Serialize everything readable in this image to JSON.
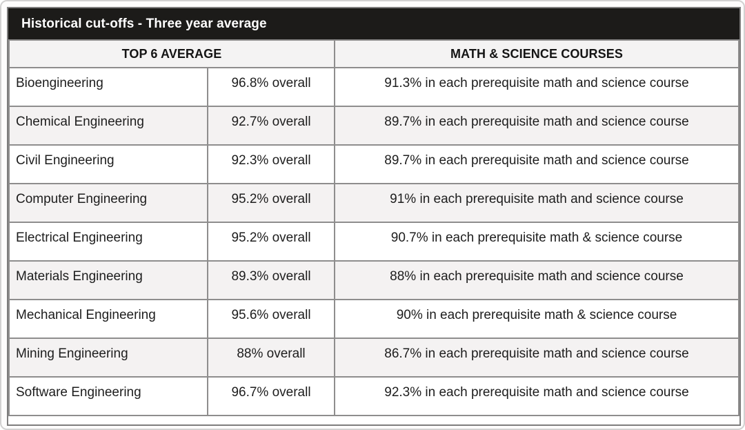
{
  "title": "Historical cut-offs - Three year average",
  "columns": {
    "top6": "TOP 6 AVERAGE",
    "mathsci": "MATH & SCIENCE COURSES"
  },
  "rows": [
    {
      "program": "Bioengineering",
      "overall": "96.8% overall",
      "mathsci": "91.3% in each prerequisite math and science course"
    },
    {
      "program": "Chemical Engineering",
      "overall": "92.7% overall",
      "mathsci": "89.7% in each prerequisite math and science course"
    },
    {
      "program": "Civil Engineering",
      "overall": "92.3% overall",
      "mathsci": "89.7% in each prerequisite math and science course"
    },
    {
      "program": "Computer Engineering",
      "overall": "95.2% overall",
      "mathsci": "91% in each prerequisite math and science course"
    },
    {
      "program": "Electrical Engineering",
      "overall": "95.2% overall",
      "mathsci": "90.7% in each prerequisite math & science course"
    },
    {
      "program": "Materials Engineering",
      "overall": "89.3% overall",
      "mathsci": "88% in each prerequisite math and science course"
    },
    {
      "program": "Mechanical Engineering",
      "overall": "95.6% overall",
      "mathsci": "90% in each prerequisite math & science course"
    },
    {
      "program": "Mining Engineering",
      "overall": "88% overall",
      "mathsci": "86.7% in each prerequisite math and science course"
    },
    {
      "program": "Software Engineering",
      "overall": "96.7% overall",
      "mathsci": "92.3% in each prerequisite math and science course"
    }
  ],
  "colors": {
    "title_bar_bg": "#1c1b19",
    "title_text": "#ffffff",
    "header_bg": "#f4f3f3",
    "row_bg": "#ffffff",
    "row_alt_bg": "#f4f2f2",
    "border": "#8e8d8d",
    "text": "#1d1d1d"
  }
}
